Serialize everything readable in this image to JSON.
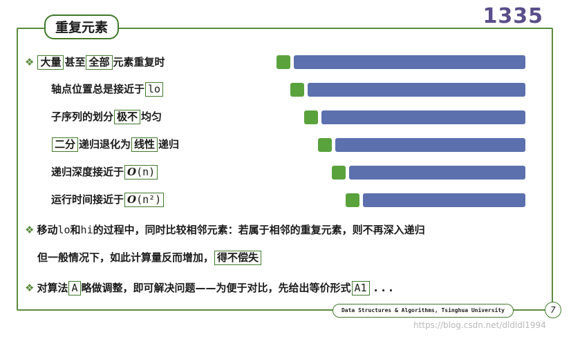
{
  "title": "重复元素",
  "page_number": "1335",
  "lines": {
    "l1": {
      "box1": "大量",
      "t1": "甚至",
      "box2": "全部",
      "t2": "元素重复时"
    },
    "l2": {
      "t1": "轴点位置总是接近于",
      "box1": "lo"
    },
    "l3": {
      "t1": "子序列的划分",
      "box1": "极不",
      "t2": "均匀"
    },
    "l4": {
      "box1": "二分",
      "t1": "递归退化为",
      "box2": "线性",
      "t2": "递归"
    },
    "l5": {
      "t1": "递归深度接近于",
      "box1_o": "O",
      "box1_rest": "(n)"
    },
    "l6": {
      "t1": "运行时间接近于",
      "box1_o": "O",
      "box1_rest": "(n²)"
    },
    "l7": {
      "t1": "移动",
      "code1": "lo",
      "t2": "和",
      "code2": "hi",
      "t3": "的过程中，同时比较相邻元素：若属于相邻的重复元素，则不再深入递归"
    },
    "l8": {
      "t1": "但一般情况下，如此计算量反而增加，",
      "box1": "得不偿失"
    },
    "l9": {
      "t1": "对算法",
      "box1": "A",
      "t2": "略做调整，即可解决问题——为便于对比，先给出等价形式",
      "box2": "A1",
      "t3": " . . ."
    }
  },
  "footer_text": "Data Structures & Algorithms, Tsinghua University",
  "slide_number": "7",
  "watermark": "https://blog.csdn.net/dldldl1994",
  "colors": {
    "green": "#5aa23c",
    "blue": "#5b70ad",
    "frame": "#5a8a3a"
  }
}
